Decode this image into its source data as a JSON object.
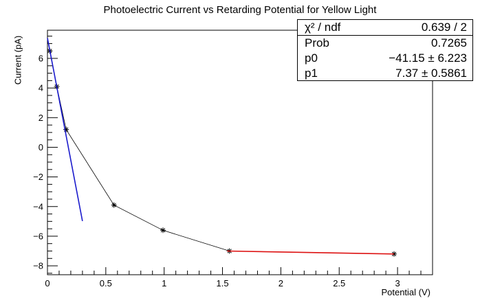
{
  "chart_data": {
    "type": "scatter",
    "title": "Photoelectric Current vs Retarding Potential for Yellow Light",
    "xlabel": "Potential (V)",
    "ylabel": "Current (pA)",
    "xlim": [
      0,
      3.3
    ],
    "ylim": [
      -8.6,
      7.9
    ],
    "xticks": [
      "0",
      "0.5",
      "1",
      "1.5",
      "2",
      "2.5",
      "3"
    ],
    "yticks": [
      "−8",
      "−6",
      "−4",
      "−2",
      "0",
      "2",
      "4",
      "6"
    ],
    "grid": false,
    "series": [
      {
        "style": "connected markers",
        "color": "#000000",
        "x": [
          0.02,
          0.08,
          0.16,
          0.57,
          0.99,
          1.56,
          2.97
        ],
        "y": [
          6.5,
          4.1,
          1.2,
          -3.9,
          -5.6,
          -7.0,
          -7.2
        ]
      },
      {
        "style": "fit line",
        "color": "#1a1acc",
        "x": [
          0.0,
          0.3
        ],
        "y": [
          7.37,
          -4.98
        ]
      },
      {
        "style": "fit line",
        "color": "#dd1111",
        "x": [
          1.54,
          2.97
        ],
        "y": [
          -7.0,
          -7.2
        ]
      }
    ],
    "stats_box": {
      "position": "top-right",
      "rows": [
        {
          "label": "χ² / ndf",
          "value": "0.639 / 2"
        },
        {
          "label": "Prob",
          "value": "0.7265"
        },
        {
          "label": "p0",
          "value": "−41.15 ± 6.223"
        },
        {
          "label": "p1",
          "value": "7.37 ± 0.5861"
        }
      ]
    }
  }
}
